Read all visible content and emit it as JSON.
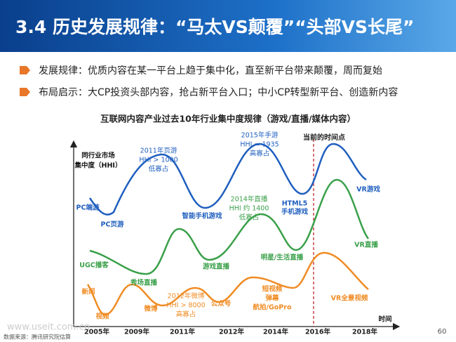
{
  "header": {
    "title": "3.4 历史发展规律：“马太VS颠覆”“头部VS长尾”"
  },
  "bullets": [
    "发展规律：优质内容在某一平台上趋于集中化，直至新平台带来颠覆，周而复始",
    "布局启示：大CP投资头部内容，抢占新平台入口；中小CP转型新平台、创造新内容"
  ],
  "diagram": {
    "title": "互联网内容产业过去10年行业集中度规律（游戏/直播/媒体内容）",
    "y_axis_label": [
      "同行业市场",
      "集中度（HHI）"
    ],
    "x_axis_label": "时间",
    "years": [
      "2005年",
      "2009年",
      "2011年",
      "2012年",
      "2014年",
      "2016年",
      "2018年"
    ],
    "current_marker": "当前的时间点",
    "games": {
      "labels": [
        "PC端游",
        "PC页游",
        "智能手机游戏",
        "VR游戏"
      ],
      "notes": [
        [
          "2011年页游",
          "HHI > 1000",
          "低寡占"
        ],
        [
          "2015年手游",
          "HHI = 1935",
          "高寡占"
        ],
        [
          "HTML5",
          "手机游戏"
        ]
      ]
    },
    "live": {
      "labels": [
        "UGC播客",
        "秀场直播",
        "游戏直播",
        "明星/生活直播",
        "VR直播"
      ],
      "notes": [
        [
          "2014年直播",
          "HHI 约 1400",
          "低寡占"
        ]
      ]
    },
    "media": {
      "labels": [
        "新闻",
        "视频",
        "微博",
        "公众号",
        "VR全景视频"
      ],
      "notes": [
        [
          "2012年微博",
          "HHI > 8000",
          "高寡占"
        ],
        [
          "短视频",
          "弹幕",
          "航拍/GoPro"
        ]
      ]
    }
  },
  "footer": {
    "source": "数据来源：腾讯研究院估算",
    "page": "60",
    "watermark": "www.useit.com.cn"
  }
}
